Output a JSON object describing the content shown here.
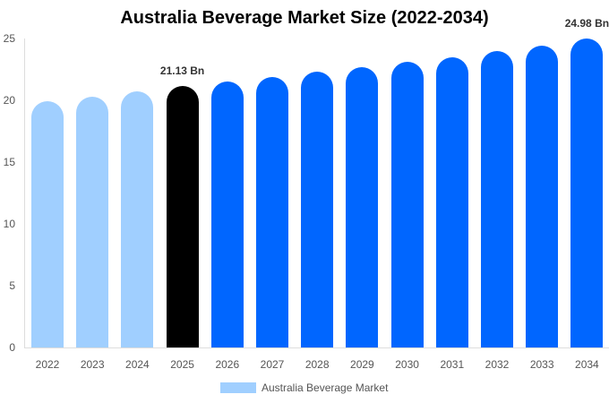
{
  "chart_data": {
    "type": "bar",
    "title": "Australia Beverage Market Size (2022-2034)",
    "xlabel": "",
    "ylabel": "",
    "ylim": [
      0,
      25
    ],
    "yticks": [
      0,
      5,
      10,
      15,
      20,
      25
    ],
    "grid": false,
    "legend_position": "bottom",
    "categories": [
      "2022",
      "2023",
      "2024",
      "2025",
      "2026",
      "2027",
      "2028",
      "2029",
      "2030",
      "2031",
      "2032",
      "2033",
      "2034"
    ],
    "series": [
      {
        "name": "Australia Beverage Market",
        "values": [
          19.9,
          20.3,
          20.7,
          21.13,
          21.5,
          21.9,
          22.3,
          22.7,
          23.1,
          23.5,
          24.0,
          24.4,
          24.98
        ]
      }
    ],
    "bar_colors": [
      "#a0cfff",
      "#a0cfff",
      "#a0cfff",
      "#000000",
      "#0066ff",
      "#0066ff",
      "#0066ff",
      "#0066ff",
      "#0066ff",
      "#0066ff",
      "#0066ff",
      "#0066ff",
      "#0066ff"
    ],
    "annotations": [
      {
        "category": "2025",
        "text": "21.13 Bn"
      },
      {
        "category": "2034",
        "text": "24.98 Bn"
      }
    ]
  },
  "legend": {
    "label": "Australia Beverage Market",
    "color": "#a0cfff"
  }
}
